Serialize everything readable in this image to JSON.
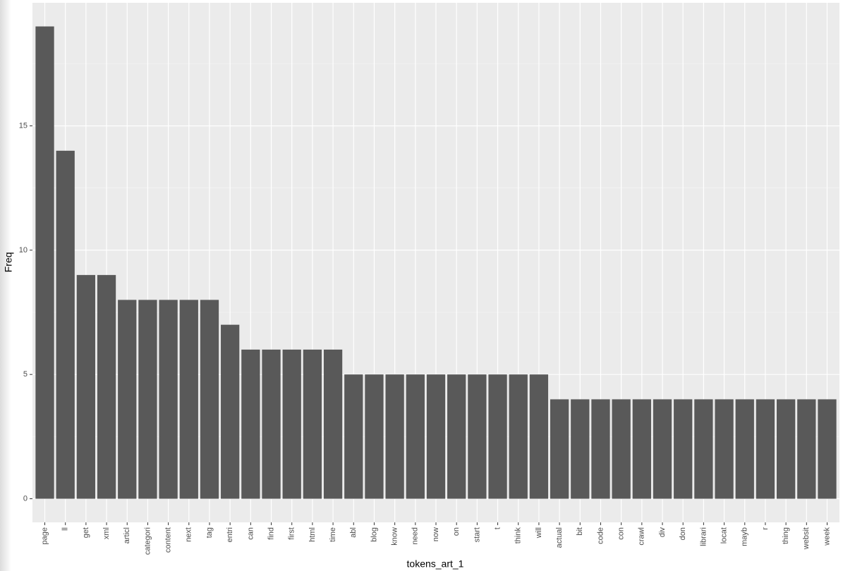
{
  "chart_data": {
    "type": "bar",
    "x_label": "tokens_art_1",
    "y_label": "Freq",
    "categories": [
      "page",
      "ll",
      "get",
      "xml",
      "articl",
      "categori",
      "content",
      "next",
      "tag",
      "entri",
      "can",
      "find",
      "first",
      "html",
      "time",
      "abl",
      "blog",
      "know",
      "need",
      "now",
      "on",
      "start",
      "t",
      "think",
      "will",
      "actual",
      "bit",
      "code",
      "con",
      "crawl",
      "div",
      "don",
      "librari",
      "locat",
      "mayb",
      "r",
      "thing",
      "websit",
      "week"
    ],
    "values": [
      19,
      14,
      9,
      9,
      8,
      8,
      8,
      8,
      8,
      7,
      6,
      6,
      6,
      6,
      6,
      5,
      5,
      5,
      5,
      5,
      5,
      5,
      5,
      5,
      5,
      4,
      4,
      4,
      4,
      4,
      4,
      4,
      4,
      4,
      4,
      4,
      4,
      4,
      4
    ],
    "color": "#595959",
    "ylim": [
      -0.95,
      19.95
    ],
    "yticks": [
      0,
      5,
      10,
      15
    ],
    "grid": true
  }
}
